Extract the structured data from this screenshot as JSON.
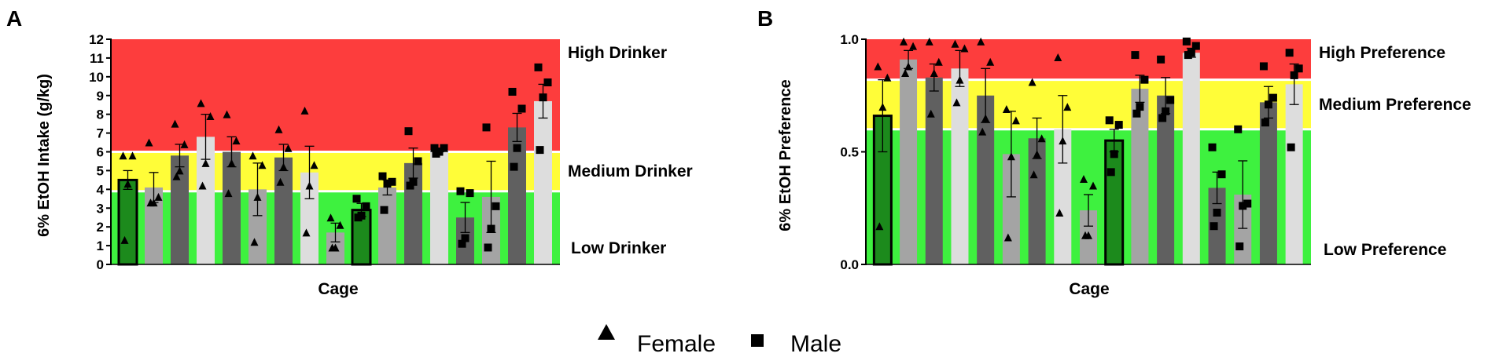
{
  "legend": {
    "female_label": "Female",
    "male_label": "Male"
  },
  "colors": {
    "high": "#fd3d3d",
    "medium": "#fffd38",
    "low": "#3ef13f",
    "dark_green": "#1c8a1c",
    "dark_gray": "#606060",
    "mid_gray": "#a4a4a4",
    "light_gray": "#dddddd"
  },
  "chart_data": [
    {
      "type": "bar",
      "panel": "A",
      "xlabel": "Cage",
      "ylabel": "6% EtOH Intake (g/kg)",
      "ylim": [
        0,
        12
      ],
      "yticks": [
        "0",
        "1",
        "2",
        "3",
        "4",
        "5",
        "6",
        "7",
        "8",
        "9",
        "10",
        "11",
        "12"
      ],
      "zones": [
        {
          "name": "High Drinker",
          "from": 6,
          "to": 12,
          "color": "high"
        },
        {
          "name": "Medium Drinker",
          "from": 3.9,
          "to": 6,
          "color": "medium"
        },
        {
          "name": "Low Drinker",
          "from": 0,
          "to": 3.9,
          "color": "low"
        }
      ],
      "bars": [
        {
          "cage": 1,
          "sex": "female",
          "fill": "dark_green",
          "value": 4.5,
          "sem": 0.5,
          "points": [
            5.8,
            5.8,
            4.3,
            1.3
          ]
        },
        {
          "cage": 2,
          "sex": "female",
          "fill": "mid_gray",
          "value": 4.1,
          "sem": 0.8,
          "points": [
            6.5,
            3.6,
            3.3,
            3.3
          ]
        },
        {
          "cage": 3,
          "sex": "female",
          "fill": "dark_gray",
          "value": 5.8,
          "sem": 0.6,
          "points": [
            7.5,
            6.4,
            5.0,
            4.7
          ]
        },
        {
          "cage": 4,
          "sex": "female",
          "fill": "light_gray",
          "value": 6.8,
          "sem": 1.2,
          "points": [
            8.6,
            7.9,
            5.4,
            4.2
          ]
        },
        {
          "cage": 5,
          "sex": "female",
          "fill": "dark_gray",
          "value": 6.0,
          "sem": 0.8,
          "points": [
            8.0,
            6.6,
            5.4,
            3.8
          ]
        },
        {
          "cage": 6,
          "sex": "female",
          "fill": "mid_gray",
          "value": 4.0,
          "sem": 1.4,
          "points": [
            5.8,
            5.3,
            3.6,
            1.2
          ]
        },
        {
          "cage": 7,
          "sex": "female",
          "fill": "dark_gray",
          "value": 5.7,
          "sem": 0.7,
          "points": [
            7.2,
            6.2,
            5.2,
            4.4
          ]
        },
        {
          "cage": 8,
          "sex": "female",
          "fill": "light_gray",
          "value": 4.9,
          "sem": 1.4,
          "points": [
            8.2,
            5.3,
            4.2,
            1.7
          ]
        },
        {
          "cage": 9,
          "sex": "female",
          "fill": "mid_gray",
          "value": 1.7,
          "sem": 0.5,
          "points": [
            2.5,
            2.1,
            0.9,
            0.9
          ]
        },
        {
          "cage": 10,
          "sex": "male",
          "fill": "dark_green",
          "value": 2.9,
          "sem": 0.35,
          "points": [
            3.5,
            3.1,
            2.6,
            2.5
          ]
        },
        {
          "cage": 11,
          "sex": "male",
          "fill": "mid_gray",
          "value": 4.1,
          "sem": 0.4,
          "points": [
            4.7,
            4.4,
            4.3,
            2.9
          ]
        },
        {
          "cage": 12,
          "sex": "male",
          "fill": "dark_gray",
          "value": 5.4,
          "sem": 0.8,
          "points": [
            7.1,
            5.5,
            4.4,
            4.2
          ]
        },
        {
          "cage": 13,
          "sex": "male",
          "fill": "light_gray",
          "value": 6.1,
          "sem": 0.1,
          "points": [
            6.2,
            6.2,
            6.0,
            5.9
          ]
        },
        {
          "cage": 14,
          "sex": "male",
          "fill": "dark_gray",
          "value": 2.5,
          "sem": 0.8,
          "points": [
            3.9,
            3.8,
            1.4,
            1.1
          ]
        },
        {
          "cage": 15,
          "sex": "male",
          "fill": "mid_gray",
          "value": 3.6,
          "sem": 1.9,
          "points": [
            7.3,
            3.1,
            1.9,
            0.9
          ]
        },
        {
          "cage": 16,
          "sex": "male",
          "fill": "dark_gray",
          "value": 7.3,
          "sem": 0.75,
          "points": [
            9.2,
            8.3,
            6.2,
            5.2
          ]
        },
        {
          "cage": 17,
          "sex": "male",
          "fill": "light_gray",
          "value": 8.7,
          "sem": 0.9,
          "points": [
            10.5,
            9.7,
            8.9,
            6.1
          ]
        }
      ]
    },
    {
      "type": "bar",
      "panel": "B",
      "xlabel": "Cage",
      "ylabel": "6% EtOH Preference",
      "ylim": [
        0,
        1.0
      ],
      "yticks": [
        "0.0",
        "0.5",
        "1.0"
      ],
      "zones": [
        {
          "name": "High Preference",
          "from": 0.82,
          "to": 1.0,
          "color": "high"
        },
        {
          "name": "Medium Preference",
          "from": 0.6,
          "to": 0.82,
          "color": "medium"
        },
        {
          "name": "Low Preference",
          "from": 0,
          "to": 0.6,
          "color": "low"
        }
      ],
      "bars": [
        {
          "cage": 1,
          "sex": "female",
          "fill": "dark_green",
          "value": 0.66,
          "sem": 0.16,
          "points": [
            0.88,
            0.83,
            0.7,
            0.17
          ]
        },
        {
          "cage": 2,
          "sex": "female",
          "fill": "mid_gray",
          "value": 0.91,
          "sem": 0.04,
          "points": [
            0.99,
            0.97,
            0.88,
            0.85
          ]
        },
        {
          "cage": 3,
          "sex": "female",
          "fill": "dark_gray",
          "value": 0.83,
          "sem": 0.06,
          "points": [
            0.99,
            0.9,
            0.85,
            0.67
          ]
        },
        {
          "cage": 4,
          "sex": "female",
          "fill": "light_gray",
          "value": 0.87,
          "sem": 0.08,
          "points": [
            0.98,
            0.96,
            0.82,
            0.72
          ]
        },
        {
          "cage": 5,
          "sex": "female",
          "fill": "dark_gray",
          "value": 0.75,
          "sem": 0.12,
          "points": [
            0.99,
            0.9,
            0.65,
            0.59
          ]
        },
        {
          "cage": 6,
          "sex": "female",
          "fill": "mid_gray",
          "value": 0.49,
          "sem": 0.19,
          "points": [
            0.69,
            0.64,
            0.48,
            0.12
          ]
        },
        {
          "cage": 7,
          "sex": "female",
          "fill": "dark_gray",
          "value": 0.56,
          "sem": 0.09,
          "points": [
            0.81,
            0.56,
            0.49,
            0.4
          ]
        },
        {
          "cage": 8,
          "sex": "female",
          "fill": "light_gray",
          "value": 0.6,
          "sem": 0.15,
          "points": [
            0.92,
            0.7,
            0.55,
            0.23
          ]
        },
        {
          "cage": 9,
          "sex": "female",
          "fill": "mid_gray",
          "value": 0.24,
          "sem": 0.07,
          "points": [
            0.38,
            0.35,
            0.13,
            0.13
          ]
        },
        {
          "cage": 10,
          "sex": "male",
          "fill": "dark_green",
          "value": 0.55,
          "sem": 0.05,
          "points": [
            0.64,
            0.62,
            0.49,
            0.41
          ]
        },
        {
          "cage": 11,
          "sex": "male",
          "fill": "mid_gray",
          "value": 0.78,
          "sem": 0.06,
          "points": [
            0.93,
            0.82,
            0.7,
            0.67
          ]
        },
        {
          "cage": 12,
          "sex": "male",
          "fill": "dark_gray",
          "value": 0.75,
          "sem": 0.08,
          "points": [
            0.91,
            0.73,
            0.68,
            0.65
          ]
        },
        {
          "cage": 13,
          "sex": "male",
          "fill": "light_gray",
          "value": 0.94,
          "sem": 0.02,
          "points": [
            0.99,
            0.97,
            0.94,
            0.93
          ]
        },
        {
          "cage": 14,
          "sex": "male",
          "fill": "dark_gray",
          "value": 0.34,
          "sem": 0.07,
          "points": [
            0.52,
            0.4,
            0.23,
            0.17
          ]
        },
        {
          "cage": 15,
          "sex": "male",
          "fill": "mid_gray",
          "value": 0.31,
          "sem": 0.15,
          "points": [
            0.6,
            0.27,
            0.26,
            0.08
          ]
        },
        {
          "cage": 16,
          "sex": "male",
          "fill": "dark_gray",
          "value": 0.72,
          "sem": 0.07,
          "points": [
            0.88,
            0.74,
            0.71,
            0.63
          ]
        },
        {
          "cage": 17,
          "sex": "male",
          "fill": "light_gray",
          "value": 0.8,
          "sem": 0.09,
          "points": [
            0.94,
            0.87,
            0.84,
            0.52
          ]
        }
      ]
    }
  ]
}
